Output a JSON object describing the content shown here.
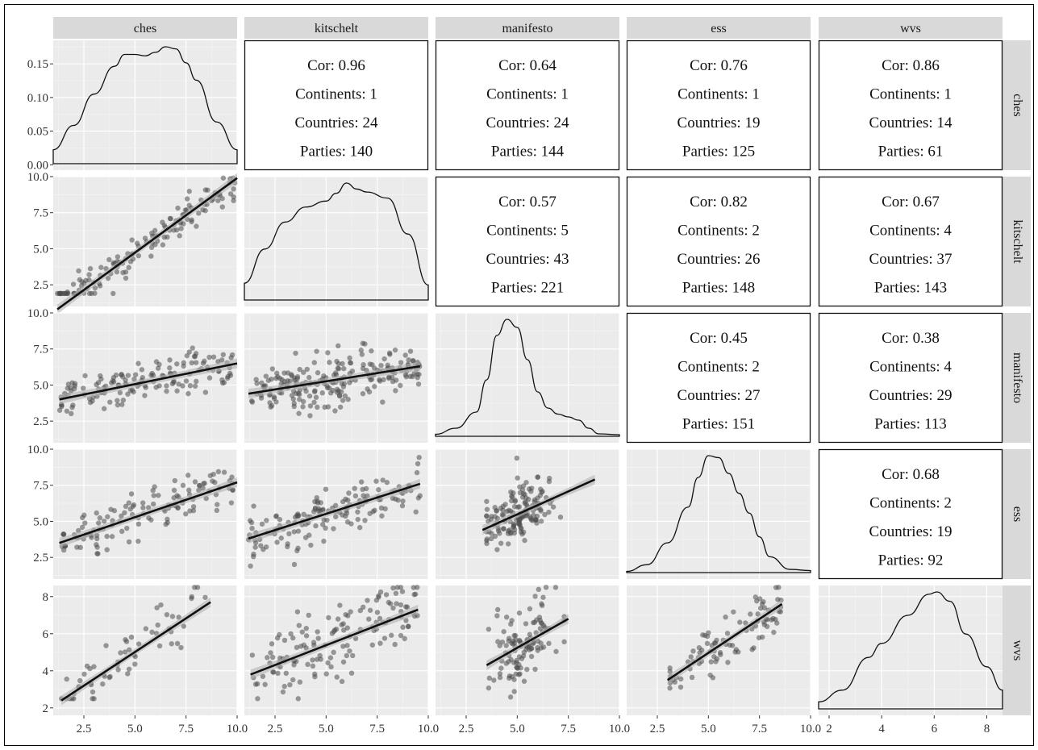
{
  "chart_data": {
    "type": "scatter",
    "variables": [
      "ches",
      "kitschelt",
      "manifesto",
      "ess",
      "wvs"
    ],
    "axis_ticks": {
      "ches": {
        "lim": [
          1.0,
          10.0
        ],
        "ticks": [
          "2.5",
          "5.0",
          "7.5",
          "10.0"
        ],
        "values": [
          2.5,
          5.0,
          7.5,
          10.0
        ]
      },
      "kitschelt": {
        "lim": [
          1.0,
          10.0
        ],
        "ticks": [
          "2.5",
          "5.0",
          "7.5",
          "10.0"
        ],
        "values": [
          2.5,
          5.0,
          7.5,
          10.0
        ]
      },
      "manifesto": {
        "lim": [
          1.0,
          10.0
        ],
        "ticks": [
          "2.5",
          "5.0",
          "7.5",
          "10.0"
        ],
        "values": [
          2.5,
          5.0,
          7.5,
          10.0
        ]
      },
      "ess": {
        "lim": [
          1.0,
          10.0
        ],
        "ticks": [
          "2.5",
          "5.0",
          "7.5",
          "10.0"
        ],
        "values": [
          2.5,
          5.0,
          7.5,
          10.0
        ]
      },
      "wvs": {
        "lim": [
          1.6,
          8.6
        ],
        "ticks": [
          "2",
          "4",
          "6",
          "8"
        ],
        "values": [
          2,
          4,
          6,
          8
        ]
      }
    },
    "density_y_ticks": [
      "0.00",
      "0.05",
      "0.10",
      "0.15"
    ],
    "density_y_values": [
      0.0,
      0.05,
      0.1,
      0.15
    ],
    "density_y_lim": [
      -0.008,
      0.185
    ],
    "densities": {
      "ches": {
        "x": [
          1.0,
          2.0,
          3.0,
          4.0,
          4.5,
          5.0,
          5.5,
          6.0,
          6.5,
          7.0,
          7.5,
          8.0,
          9.0,
          10.0
        ],
        "y": [
          0.02,
          0.055,
          0.1,
          0.14,
          0.157,
          0.157,
          0.155,
          0.16,
          0.168,
          0.165,
          0.145,
          0.12,
          0.06,
          0.02
        ]
      },
      "kitschelt": {
        "x": [
          1.0,
          2.0,
          3.0,
          4.0,
          5.0,
          5.5,
          6.0,
          6.5,
          7.0,
          8.0,
          9.0,
          10.0
        ],
        "y": [
          0.028,
          0.085,
          0.13,
          0.155,
          0.165,
          0.178,
          0.195,
          0.185,
          0.18,
          0.17,
          0.11,
          0.025
        ]
      },
      "manifesto": {
        "x": [
          1.0,
          2.0,
          3.0,
          3.5,
          4.0,
          4.5,
          5.0,
          5.5,
          6.0,
          6.5,
          7.0,
          7.5,
          8.0,
          8.5,
          9.0,
          10.0
        ],
        "y": [
          0.005,
          0.02,
          0.06,
          0.14,
          0.25,
          0.29,
          0.27,
          0.19,
          0.11,
          0.07,
          0.055,
          0.048,
          0.04,
          0.02,
          0.006,
          0.004
        ]
      },
      "ess": {
        "x": [
          1.0,
          2.0,
          3.0,
          4.0,
          4.5,
          5.0,
          5.5,
          6.0,
          6.5,
          7.0,
          7.5,
          8.0,
          9.0,
          10.0
        ],
        "y": [
          0.003,
          0.02,
          0.075,
          0.165,
          0.24,
          0.295,
          0.29,
          0.25,
          0.2,
          0.15,
          0.09,
          0.04,
          0.008,
          0.005
        ]
      },
      "wvs": {
        "x": [
          1.6,
          2.5,
          3.5,
          4.0,
          5.0,
          5.8,
          6.1,
          6.6,
          7.2,
          8.0,
          8.6
        ],
        "y": [
          0.015,
          0.04,
          0.11,
          0.14,
          0.2,
          0.245,
          0.25,
          0.23,
          0.16,
          0.09,
          0.04
        ]
      }
    },
    "correlations": [
      {
        "row": "ches",
        "col": "kitschelt",
        "cor": "Cor: 0.96",
        "continents": "Continents: 1",
        "countries": "Countries: 24",
        "parties": "Parties: 140"
      },
      {
        "row": "ches",
        "col": "manifesto",
        "cor": "Cor: 0.64",
        "continents": "Continents: 1",
        "countries": "Countries: 24",
        "parties": "Parties: 144"
      },
      {
        "row": "ches",
        "col": "ess",
        "cor": "Cor: 0.76",
        "continents": "Continents: 1",
        "countries": "Countries: 19",
        "parties": "Parties: 125"
      },
      {
        "row": "ches",
        "col": "wvs",
        "cor": "Cor: 0.86",
        "continents": "Continents: 1",
        "countries": "Countries: 14",
        "parties": "Parties: 61"
      },
      {
        "row": "kitschelt",
        "col": "manifesto",
        "cor": "Cor: 0.57",
        "continents": "Continents: 5",
        "countries": "Countries: 43",
        "parties": "Parties: 221"
      },
      {
        "row": "kitschelt",
        "col": "ess",
        "cor": "Cor: 0.82",
        "continents": "Continents: 2",
        "countries": "Countries: 26",
        "parties": "Parties: 148"
      },
      {
        "row": "kitschelt",
        "col": "wvs",
        "cor": "Cor: 0.67",
        "continents": "Continents: 4",
        "countries": "Countries: 37",
        "parties": "Parties: 143"
      },
      {
        "row": "manifesto",
        "col": "ess",
        "cor": "Cor: 0.45",
        "continents": "Continents: 2",
        "countries": "Countries: 27",
        "parties": "Parties: 151"
      },
      {
        "row": "manifesto",
        "col": "wvs",
        "cor": "Cor: 0.38",
        "continents": "Continents: 4",
        "countries": "Countries: 29",
        "parties": "Parties: 113"
      },
      {
        "row": "ess",
        "col": "wvs",
        "cor": "Cor: 0.68",
        "continents": "Continents: 2",
        "countries": "Countries: 19",
        "parties": "Parties: 92"
      }
    ],
    "scatter": [
      {
        "row": "kitschelt",
        "col": "ches",
        "fit": {
          "x": [
            1.2,
            10.0
          ],
          "y": [
            0.8,
            9.9
          ]
        },
        "cluster": {
          "x_range": [
            1.2,
            9.9
          ],
          "slope": 1.02,
          "intercept": -0.35,
          "noise": 0.6,
          "n": 140
        }
      },
      {
        "row": "manifesto",
        "col": "ches",
        "fit": {
          "x": [
            1.3,
            10.0
          ],
          "y": [
            4.0,
            6.5
          ]
        },
        "cluster": {
          "x_range": [
            1.3,
            9.8
          ],
          "slope": 0.29,
          "intercept": 3.65,
          "noise": 0.8,
          "n": 144
        }
      },
      {
        "row": "manifesto",
        "col": "kitschelt",
        "fit": {
          "x": [
            1.2,
            9.6
          ],
          "y": [
            4.4,
            6.3
          ]
        },
        "cluster": {
          "x_range": [
            1.2,
            9.6
          ],
          "slope": 0.23,
          "intercept": 4.1,
          "noise": 0.85,
          "n": 221
        }
      },
      {
        "row": "ess",
        "col": "ches",
        "fit": {
          "x": [
            1.3,
            10.0
          ],
          "y": [
            3.5,
            7.7
          ]
        },
        "cluster": {
          "x_range": [
            1.3,
            9.8
          ],
          "slope": 0.48,
          "intercept": 2.9,
          "noise": 0.9,
          "n": 125
        }
      },
      {
        "row": "ess",
        "col": "kitschelt",
        "fit": {
          "x": [
            1.2,
            9.6
          ],
          "y": [
            3.8,
            7.6
          ]
        },
        "cluster": {
          "x_range": [
            1.2,
            9.6
          ],
          "slope": 0.45,
          "intercept": 3.25,
          "noise": 0.85,
          "n": 148
        }
      },
      {
        "row": "ess",
        "col": "manifesto",
        "fit": {
          "x": [
            3.3,
            8.8
          ],
          "y": [
            4.4,
            7.9
          ]
        },
        "cluster": {
          "x_range": [
            3.5,
            7.8
          ],
          "slope": 0.64,
          "intercept": 2.3,
          "noise": 1.0,
          "n": 151
        }
      },
      {
        "row": "wvs",
        "col": "ches",
        "fit": {
          "x": [
            1.4,
            8.7
          ],
          "y": [
            2.4,
            7.7
          ]
        },
        "cluster": {
          "x_range": [
            1.4,
            8.7
          ],
          "slope": 0.73,
          "intercept": 1.4,
          "noise": 0.7,
          "n": 61
        }
      },
      {
        "row": "wvs",
        "col": "kitschelt",
        "fit": {
          "x": [
            1.3,
            9.5
          ],
          "y": [
            3.8,
            7.3
          ]
        },
        "cluster": {
          "x_range": [
            1.3,
            9.5
          ],
          "slope": 0.43,
          "intercept": 3.25,
          "noise": 1.0,
          "n": 143
        }
      },
      {
        "row": "wvs",
        "col": "manifesto",
        "fit": {
          "x": [
            3.5,
            7.5
          ],
          "y": [
            4.3,
            6.8
          ]
        },
        "cluster": {
          "x_range": [
            3.6,
            7.3
          ],
          "slope": 0.62,
          "intercept": 2.1,
          "noise": 1.1,
          "n": 113
        }
      },
      {
        "row": "wvs",
        "col": "ess",
        "fit": {
          "x": [
            3.0,
            8.6
          ],
          "y": [
            3.5,
            7.6
          ]
        },
        "cluster": {
          "x_range": [
            3.0,
            8.6
          ],
          "slope": 0.73,
          "intercept": 1.3,
          "noise": 0.6,
          "n": 92
        }
      }
    ],
    "grid": true,
    "colors": {
      "panel_bg": "#ebebeb",
      "grid_major": "#ffffff",
      "strip_bg": "#d9d9d9",
      "point": "#4d4d4d",
      "fit_line": "#111111",
      "ci_band": "#b3b3b3"
    }
  }
}
